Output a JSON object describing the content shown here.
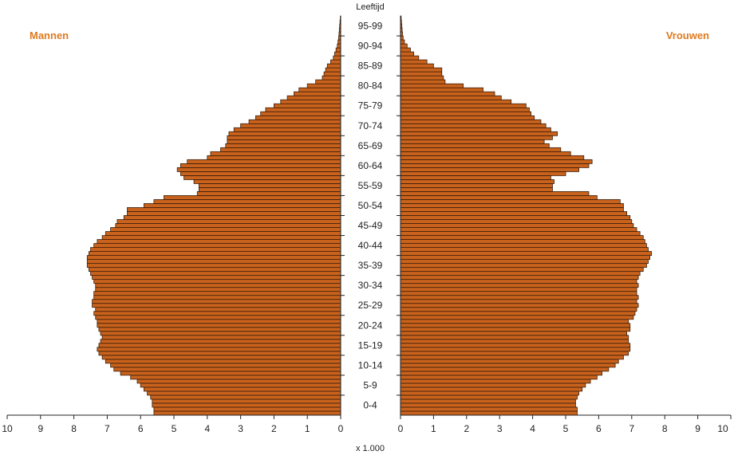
{
  "chart_data": {
    "type": "bar",
    "orientation": "horizontal",
    "layout": "population-pyramid",
    "y_title": "Leeftijd",
    "x_unit_label": "x 1.000",
    "left_title": "Mannen",
    "right_title": "Vrouwen",
    "xlim": [
      0,
      10
    ],
    "x_ticks": [
      "0",
      "1",
      "2",
      "3",
      "4",
      "5",
      "6",
      "7",
      "8",
      "9",
      "10"
    ],
    "age_group_labels": [
      "0-4",
      "5-9",
      "10-14",
      "15-19",
      "20-24",
      "25-29",
      "30-34",
      "35-39",
      "40-44",
      "45-49",
      "50-54",
      "55-59",
      "60-64",
      "65-69",
      "70-74",
      "75-79",
      "80-84",
      "85-89",
      "90-94",
      "95-99"
    ],
    "ages": [
      0,
      1,
      2,
      3,
      4,
      5,
      6,
      7,
      8,
      9,
      10,
      11,
      12,
      13,
      14,
      15,
      16,
      17,
      18,
      19,
      20,
      21,
      22,
      23,
      24,
      25,
      26,
      27,
      28,
      29,
      30,
      31,
      32,
      33,
      34,
      35,
      36,
      37,
      38,
      39,
      40,
      41,
      42,
      43,
      44,
      45,
      46,
      47,
      48,
      49,
      50,
      51,
      52,
      53,
      54,
      55,
      56,
      57,
      58,
      59,
      60,
      61,
      62,
      63,
      64,
      65,
      66,
      67,
      68,
      69,
      70,
      71,
      72,
      73,
      74,
      75,
      76,
      77,
      78,
      79,
      80,
      81,
      82,
      83,
      84,
      85,
      86,
      87,
      88,
      89,
      90,
      91,
      92,
      93,
      94,
      95,
      96,
      97,
      98,
      99
    ],
    "series": [
      {
        "name": "Mannen",
        "values": [
          5.6,
          5.6,
          5.65,
          5.65,
          5.7,
          5.8,
          5.9,
          6.0,
          6.1,
          6.3,
          6.6,
          6.8,
          6.9,
          7.05,
          7.15,
          7.25,
          7.3,
          7.25,
          7.2,
          7.15,
          7.2,
          7.25,
          7.3,
          7.3,
          7.35,
          7.4,
          7.35,
          7.45,
          7.45,
          7.4,
          7.4,
          7.35,
          7.35,
          7.4,
          7.45,
          7.5,
          7.55,
          7.6,
          7.6,
          7.6,
          7.55,
          7.5,
          7.4,
          7.3,
          7.15,
          7.05,
          6.9,
          6.75,
          6.7,
          6.5,
          6.4,
          6.4,
          5.9,
          5.6,
          5.3,
          4.3,
          4.25,
          4.25,
          4.4,
          4.7,
          4.8,
          4.9,
          4.8,
          4.6,
          4.0,
          3.9,
          3.6,
          3.45,
          3.4,
          3.4,
          3.35,
          3.2,
          3.0,
          2.75,
          2.55,
          2.4,
          2.25,
          2.0,
          1.8,
          1.6,
          1.4,
          1.25,
          1.0,
          0.75,
          0.55,
          0.5,
          0.45,
          0.4,
          0.3,
          0.22,
          0.18,
          0.14,
          0.1,
          0.08,
          0.06,
          0.05,
          0.04,
          0.03,
          0.02,
          0.01
        ]
      },
      {
        "name": "Vrouwen",
        "values": [
          5.35,
          5.35,
          5.3,
          5.3,
          5.35,
          5.4,
          5.5,
          5.6,
          5.75,
          5.95,
          6.1,
          6.3,
          6.5,
          6.6,
          6.75,
          6.9,
          6.95,
          6.95,
          6.9,
          6.9,
          6.85,
          6.95,
          6.95,
          6.9,
          7.05,
          7.1,
          7.15,
          7.2,
          7.15,
          7.2,
          7.15,
          7.15,
          7.2,
          7.15,
          7.2,
          7.25,
          7.35,
          7.45,
          7.5,
          7.55,
          7.6,
          7.5,
          7.45,
          7.4,
          7.35,
          7.25,
          7.15,
          7.05,
          7.0,
          6.95,
          6.85,
          6.75,
          6.75,
          6.65,
          5.95,
          5.7,
          4.6,
          4.6,
          4.65,
          4.55,
          5.0,
          5.4,
          5.7,
          5.8,
          5.55,
          5.15,
          4.85,
          4.5,
          4.35,
          4.6,
          4.75,
          4.55,
          4.4,
          4.25,
          4.05,
          3.95,
          3.9,
          3.8,
          3.35,
          3.05,
          2.85,
          2.5,
          1.9,
          1.35,
          1.3,
          1.25,
          1.25,
          1.0,
          0.8,
          0.55,
          0.4,
          0.3,
          0.2,
          0.12,
          0.08,
          0.06,
          0.05,
          0.04,
          0.03,
          0.02
        ]
      }
    ]
  }
}
